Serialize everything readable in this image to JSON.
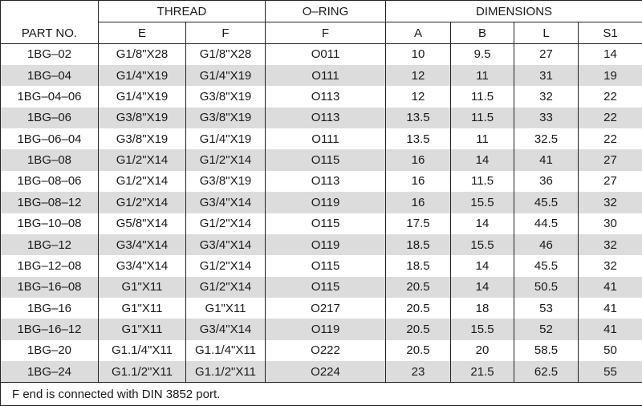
{
  "header": {
    "part_no": "PART NO.",
    "groups": [
      "THREAD",
      "O–RING",
      "DIMENSIONS"
    ],
    "columns": [
      "E",
      "F",
      "F",
      "A",
      "B",
      "L",
      "S1"
    ]
  },
  "table": {
    "rows": [
      [
        "1BG–02",
        "G1/8\"X28",
        "G1/8\"X28",
        "O011",
        10,
        9.5,
        27,
        14
      ],
      [
        "1BG–04",
        "G1/4\"X19",
        "G1/4\"X19",
        "O111",
        12,
        11,
        31,
        19
      ],
      [
        "1BG–04–06",
        "G1/4\"X19",
        "G3/8\"X19",
        "O113",
        12,
        11.5,
        32,
        22
      ],
      [
        "1BG–06",
        "G3/8\"X19",
        "G3/8\"X19",
        "O113",
        13.5,
        11.5,
        33,
        22
      ],
      [
        "1BG–06–04",
        "G3/8\"X19",
        "G1/4\"X19",
        "O111",
        13.5,
        11,
        32.5,
        22
      ],
      [
        "1BG–08",
        "G1/2\"X14",
        "G1/2\"X14",
        "O115",
        16,
        14,
        41,
        27
      ],
      [
        "1BG–08–06",
        "G1/2\"X14",
        "G3/8\"X19",
        "O113",
        16,
        11.5,
        36,
        27
      ],
      [
        "1BG–08–12",
        "G1/2\"X14",
        "G3/4\"X14",
        "O119",
        16,
        15.5,
        45.5,
        32
      ],
      [
        "1BG–10–08",
        "G5/8\"X14",
        "G1/2\"X14",
        "O115",
        17.5,
        14,
        44.5,
        30
      ],
      [
        "1BG–12",
        "G3/4\"X14",
        "G3/4\"X14",
        "O119",
        18.5,
        15.5,
        46,
        32
      ],
      [
        "1BG–12–08",
        "G3/4\"X14",
        "G1/2\"X14",
        "O115",
        18.5,
        14,
        45.5,
        32
      ],
      [
        "1BG–16–08",
        "G1\"X11",
        "G1/2\"X14",
        "O115",
        20.5,
        14,
        50.5,
        41
      ],
      [
        "1BG–16",
        "G1\"X11",
        "G1\"X11",
        "O217",
        20.5,
        18,
        53,
        41
      ],
      [
        "1BG–16–12",
        "G1\"X11",
        "G3/4\"X14",
        "O119",
        20.5,
        15.5,
        52,
        41
      ],
      [
        "1BG–20",
        "G1.1/4\"X11",
        "G1.1/4\"X11",
        "O222",
        20.5,
        20,
        58.5,
        50
      ],
      [
        "1BG–24",
        "G1.1/2\"X11",
        "G1.1/2\"X11",
        "O224",
        23,
        21.5,
        62.5,
        55
      ]
    ]
  },
  "footnote": "F end is connected with DIN 3852 port."
}
